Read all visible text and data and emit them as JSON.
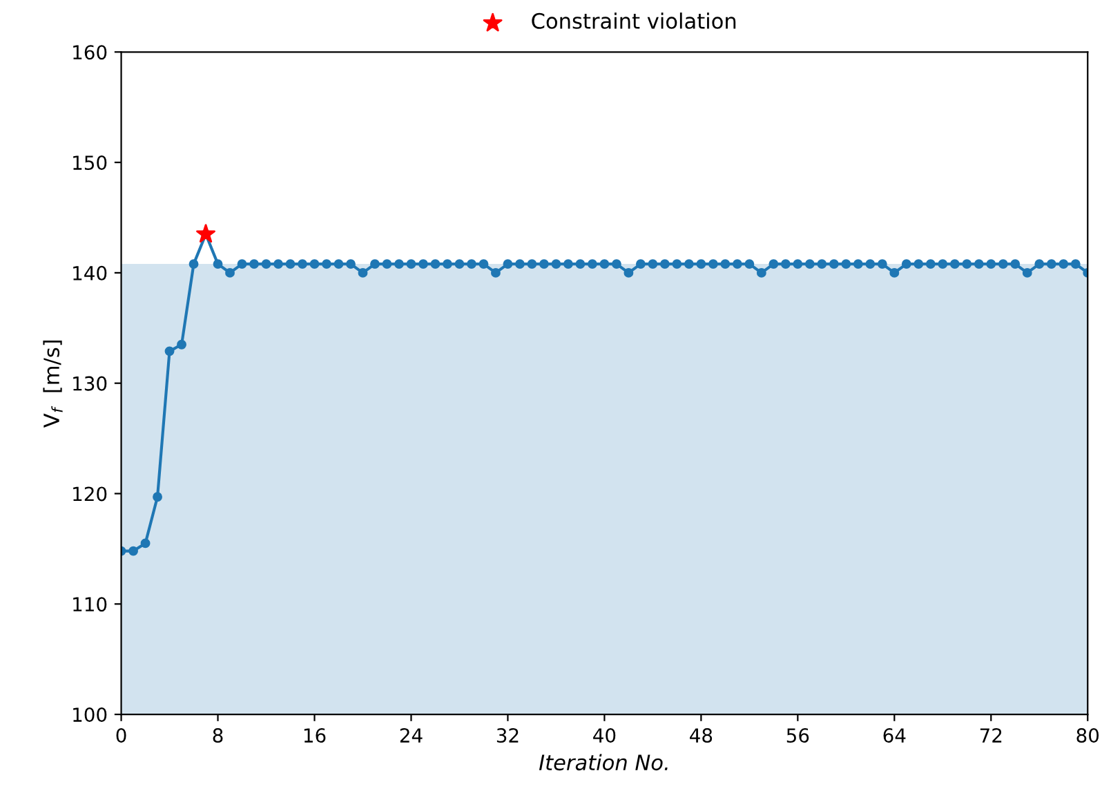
{
  "chart_data": {
    "type": "line",
    "xlabel": "Iteration No.",
    "ylabel": "V$_{f}$  [m/s]",
    "x": [
      0,
      1,
      2,
      3,
      4,
      5,
      6,
      7,
      8,
      9,
      10,
      11,
      12,
      13,
      14,
      15,
      16,
      17,
      18,
      19,
      20,
      21,
      22,
      23,
      24,
      25,
      26,
      27,
      28,
      29,
      30,
      31,
      32,
      33,
      34,
      35,
      36,
      37,
      38,
      39,
      40,
      41,
      42,
      43,
      44,
      45,
      46,
      47,
      48,
      49,
      50,
      51,
      52,
      53,
      54,
      55,
      56,
      57,
      58,
      59,
      60,
      61,
      62,
      63,
      64,
      65,
      66,
      67,
      68,
      69,
      70,
      71,
      72,
      73,
      74,
      75,
      76,
      77,
      78,
      79,
      80
    ],
    "series": [
      {
        "color": "#1f77b4",
        "marker": "circle",
        "values": [
          114.8,
          114.8,
          115.5,
          119.7,
          132.9,
          133.5,
          140.8,
          143.5,
          140.8,
          140.0,
          140.8,
          140.8,
          140.8,
          140.8,
          140.8,
          140.8,
          140.8,
          140.8,
          140.8,
          140.8,
          140.0,
          140.8,
          140.8,
          140.8,
          140.8,
          140.8,
          140.8,
          140.8,
          140.8,
          140.8,
          140.8,
          140.0,
          140.8,
          140.8,
          140.8,
          140.8,
          140.8,
          140.8,
          140.8,
          140.8,
          140.8,
          140.8,
          140.0,
          140.8,
          140.8,
          140.8,
          140.8,
          140.8,
          140.8,
          140.8,
          140.8,
          140.8,
          140.8,
          140.0,
          140.8,
          140.8,
          140.8,
          140.8,
          140.8,
          140.8,
          140.8,
          140.8,
          140.8,
          140.8,
          140.0,
          140.8,
          140.8,
          140.8,
          140.8,
          140.8,
          140.8,
          140.8,
          140.8,
          140.8,
          140.8,
          140.0,
          140.8,
          140.8,
          140.8,
          140.8,
          140.0
        ]
      },
      {
        "type": "scatter",
        "name": "Constraint violation",
        "color": "#ff0000",
        "marker": "star",
        "x": [
          7
        ],
        "values": [
          143.5
        ]
      }
    ],
    "bands": [
      {
        "axis": "y",
        "from": 100,
        "to": 140.8,
        "color": "#d2e3ef"
      }
    ],
    "xlim": [
      0,
      80
    ],
    "xticks": [
      0,
      8,
      16,
      24,
      32,
      40,
      48,
      56,
      64,
      72,
      80
    ],
    "ylim": [
      100,
      160
    ],
    "yticks": [
      100,
      110,
      120,
      130,
      140,
      150,
      160
    ],
    "grid": false,
    "legend": "top"
  }
}
